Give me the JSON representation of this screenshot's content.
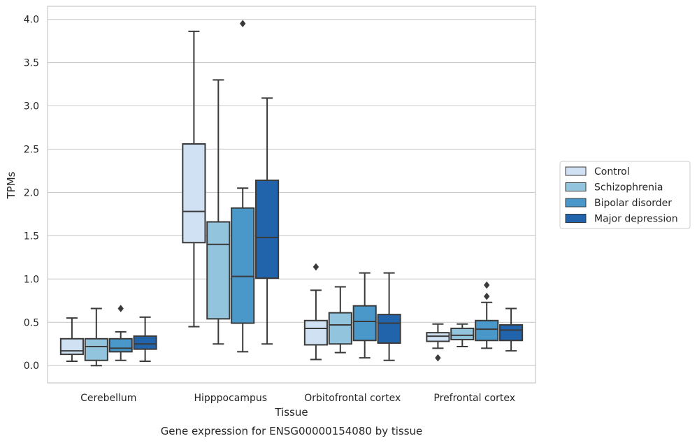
{
  "chart_data": {
    "type": "box",
    "xlabel": "Tissue",
    "ylabel": "TPMs",
    "caption": "Gene expression for ENSG00000154080 by tissue",
    "ylim": [
      -0.2,
      4.15
    ],
    "yticks": [
      "0.0",
      "0.5",
      "1.0",
      "1.5",
      "2.0",
      "2.5",
      "3.0",
      "3.5",
      "4.0"
    ],
    "grid": "horizontal",
    "legend_position": "right",
    "categories": [
      "Cerebellum",
      "Hipppocampus",
      "Orbitofrontal cortex",
      "Prefrontal cortex"
    ],
    "series": [
      {
        "name": "Control",
        "color": "#cfe1f2",
        "boxes": [
          {
            "whislo": 0.05,
            "q1": 0.13,
            "med": 0.17,
            "q3": 0.31,
            "whishi": 0.55,
            "fliers": []
          },
          {
            "whislo": 0.45,
            "q1": 1.42,
            "med": 1.78,
            "q3": 2.56,
            "whishi": 3.86,
            "fliers": []
          },
          {
            "whislo": 0.07,
            "q1": 0.24,
            "med": 0.43,
            "q3": 0.52,
            "whishi": 0.87,
            "fliers": [
              1.14
            ]
          },
          {
            "whislo": 0.2,
            "q1": 0.28,
            "med": 0.34,
            "q3": 0.38,
            "whishi": 0.48,
            "fliers": [
              0.09
            ]
          }
        ]
      },
      {
        "name": "Schizophrenia",
        "color": "#93c4de",
        "boxes": [
          {
            "whislo": 0.0,
            "q1": 0.06,
            "med": 0.22,
            "q3": 0.31,
            "whishi": 0.66,
            "fliers": []
          },
          {
            "whislo": 0.25,
            "q1": 0.54,
            "med": 1.4,
            "q3": 1.66,
            "whishi": 3.3,
            "fliers": []
          },
          {
            "whislo": 0.15,
            "q1": 0.25,
            "med": 0.47,
            "q3": 0.61,
            "whishi": 0.91,
            "fliers": []
          },
          {
            "whislo": 0.22,
            "q1": 0.3,
            "med": 0.35,
            "q3": 0.43,
            "whishi": 0.48,
            "fliers": []
          }
        ]
      },
      {
        "name": "Bipolar disorder",
        "color": "#4a98c9",
        "boxes": [
          {
            "whislo": 0.06,
            "q1": 0.16,
            "med": 0.2,
            "q3": 0.31,
            "whishi": 0.39,
            "fliers": [
              0.66
            ]
          },
          {
            "whislo": 0.16,
            "q1": 0.49,
            "med": 1.03,
            "q3": 1.82,
            "whishi": 2.05,
            "fliers": [
              3.95
            ]
          },
          {
            "whislo": 0.09,
            "q1": 0.29,
            "med": 0.51,
            "q3": 0.69,
            "whishi": 1.07,
            "fliers": []
          },
          {
            "whislo": 0.2,
            "q1": 0.29,
            "med": 0.42,
            "q3": 0.52,
            "whishi": 0.73,
            "fliers": [
              0.8,
              0.93
            ]
          }
        ]
      },
      {
        "name": "Major depression",
        "color": "#2264ab",
        "boxes": [
          {
            "whislo": 0.05,
            "q1": 0.19,
            "med": 0.25,
            "q3": 0.34,
            "whishi": 0.56,
            "fliers": []
          },
          {
            "whislo": 0.25,
            "q1": 1.01,
            "med": 1.48,
            "q3": 2.14,
            "whishi": 3.09,
            "fliers": []
          },
          {
            "whislo": 0.06,
            "q1": 0.26,
            "med": 0.49,
            "q3": 0.59,
            "whishi": 1.07,
            "fliers": []
          },
          {
            "whislo": 0.17,
            "q1": 0.29,
            "med": 0.41,
            "q3": 0.47,
            "whishi": 0.66,
            "fliers": []
          }
        ]
      }
    ]
  }
}
